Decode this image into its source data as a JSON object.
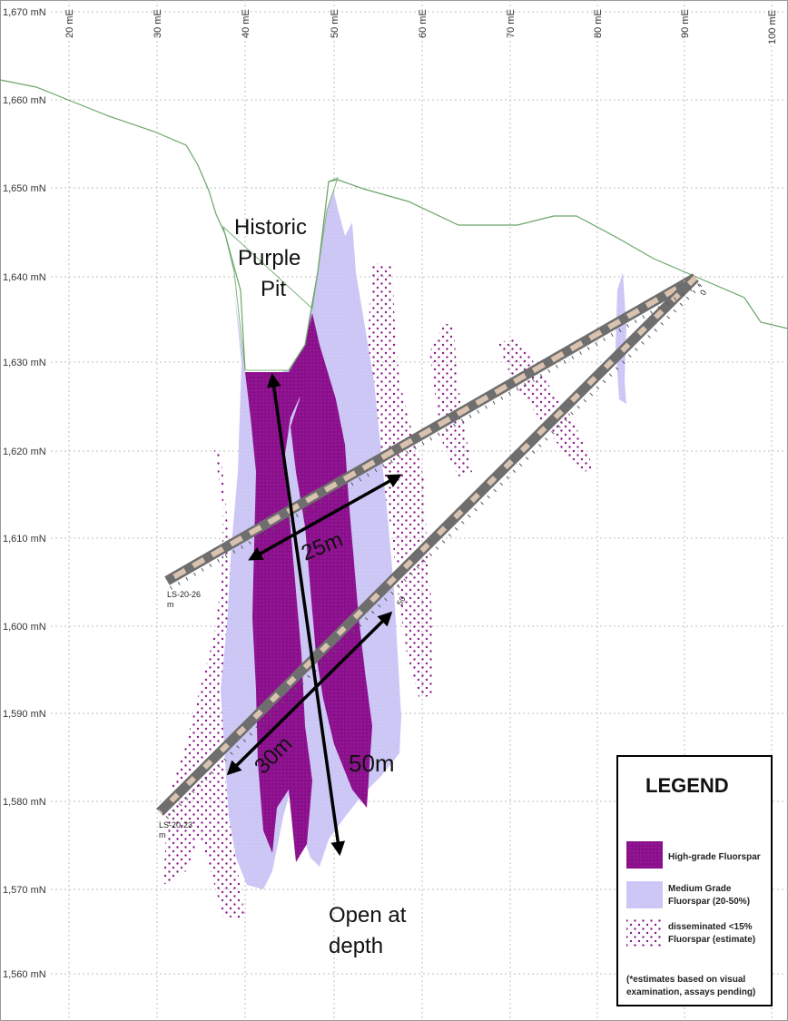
{
  "axes": {
    "y_labels": [
      "1,670 mN",
      "1,660 mN",
      "1,650 mN",
      "1,640 mN",
      "1,630 mN",
      "1,620 mN",
      "1,610 mN",
      "1,600 mN",
      "1,590 mN",
      "1,580 mN",
      "1,570 mN",
      "1,560 mN"
    ],
    "x_labels": [
      "20 mE",
      "30 mE",
      "40 mE",
      "50 mE",
      "60 mE",
      "70 mE",
      "80 mE",
      "90 mE",
      "100 mE"
    ]
  },
  "annotations": {
    "pit_line1": "Historic",
    "pit_line2": "Purple",
    "pit_line3": "Pit",
    "width_upper": "25m",
    "width_lower": "30m",
    "depth_extent": "50m",
    "open_line1": "Open at",
    "open_line2": "depth"
  },
  "drillholes": {
    "hole_a_label": "LS-20-26",
    "hole_a_unit": "m",
    "hole_b_label": "LS-20-23",
    "hole_b_unit": "m",
    "collar_depth": "0",
    "depth_marker": "50"
  },
  "legend": {
    "title": "LEGEND",
    "item1": "High-grade Fluorspar",
    "item2_line1": "Medium Grade",
    "item2_line2": "Fluorspar (20-50%)",
    "item3_line1": "disseminated <15%",
    "item3_line2": "Fluorspar (estimate)",
    "note_line1": "(*estimates based on visual",
    "note_line2": "examination, assays pending)"
  },
  "colors": {
    "high_grade": "#8b0f8c",
    "medium_grade": "#cdc8f5",
    "disseminated_dots": "#8b1a8b",
    "topography": "#6aa56a",
    "drillhole": "#6e6e6e"
  }
}
